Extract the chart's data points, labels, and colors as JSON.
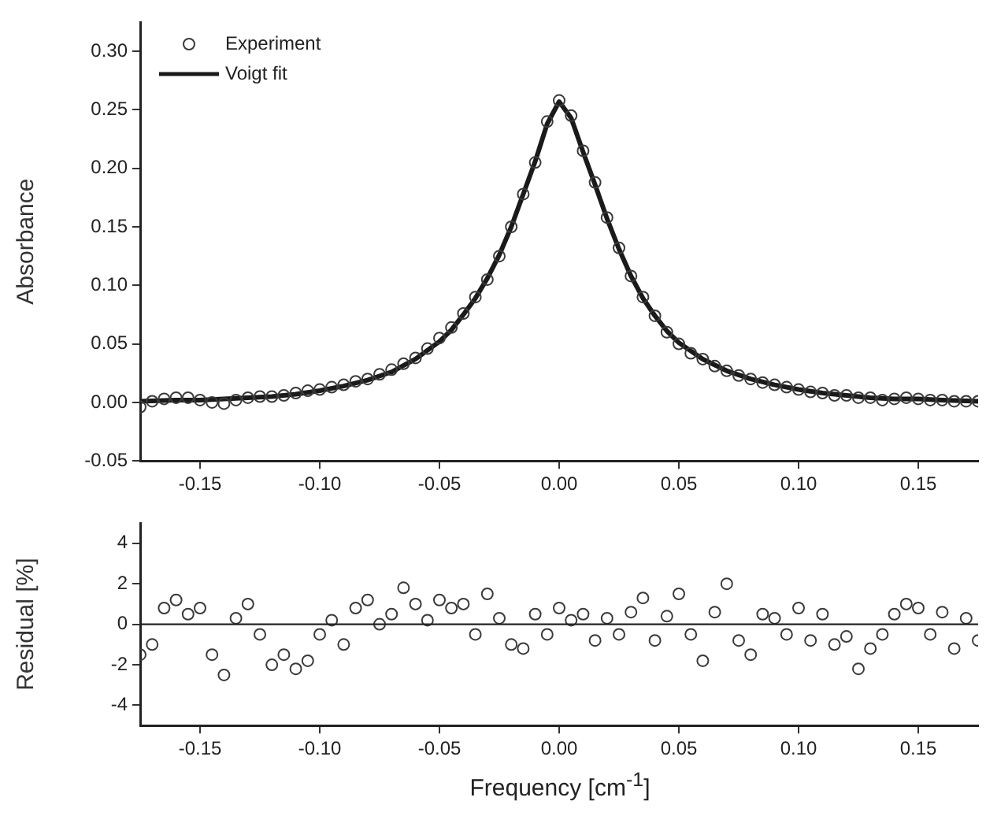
{
  "chart_data": [
    {
      "type": "scatter",
      "ylabel": "Absorbance",
      "xlim": [
        -0.175,
        0.175
      ],
      "ylim": [
        -0.05,
        0.325
      ],
      "xticks": [
        -0.15,
        {
          "value": -0.1,
          "label": "-0.10"
        },
        {
          "value": -0.05,
          "label": "-0.05"
        },
        {
          "value": 0,
          "label": "0.00"
        },
        0.05,
        {
          "value": 0.1,
          "label": "0.10"
        },
        0.15
      ],
      "yticks": [
        {
          "value": -0.05,
          "label": "-0.05"
        },
        {
          "value": 0,
          "label": "0.00"
        },
        0.05,
        {
          "value": 0.1,
          "label": "0.10"
        },
        0.15,
        {
          "value": 0.2,
          "label": "0.20"
        },
        0.25,
        {
          "value": 0.3,
          "label": "0.30"
        }
      ],
      "grid": false,
      "legend": "top left",
      "series": [
        {
          "name": "Experiment",
          "type": "scatter",
          "marker": "circle",
          "color": "#3a3a3a",
          "x": [
            -0.175,
            -0.17,
            -0.165,
            -0.16,
            -0.155,
            -0.15,
            -0.145,
            -0.14,
            -0.135,
            -0.13,
            -0.125,
            -0.12,
            -0.115,
            -0.11,
            -0.105,
            -0.1,
            -0.095,
            -0.09,
            -0.085,
            -0.08,
            -0.075,
            -0.07,
            -0.065,
            -0.06,
            -0.055,
            -0.05,
            -0.045,
            -0.04,
            -0.035,
            -0.03,
            -0.025,
            -0.02,
            -0.015,
            -0.01,
            -0.005,
            0,
            0.005,
            0.01,
            0.015,
            0.02,
            0.025,
            0.03,
            0.035,
            0.04,
            0.045,
            0.05,
            0.055,
            0.06,
            0.065,
            0.07,
            0.075,
            0.08,
            0.085,
            0.09,
            0.095,
            0.1,
            0.105,
            0.11,
            0.115,
            0.12,
            0.125,
            0.13,
            0.135,
            0.14,
            0.145,
            0.15,
            0.155,
            0.16,
            0.165,
            0.17,
            0.175
          ],
          "values": [
            -0.004,
            0.001,
            0.003,
            0.004,
            0.004,
            0.002,
            0.0,
            -0.001,
            0.002,
            0.004,
            0.005,
            0.005,
            0.006,
            0.008,
            0.01,
            0.011,
            0.013,
            0.015,
            0.018,
            0.02,
            0.024,
            0.028,
            0.033,
            0.038,
            0.046,
            0.055,
            0.064,
            0.076,
            0.09,
            0.105,
            0.125,
            0.15,
            0.178,
            0.205,
            0.24,
            0.258,
            0.245,
            0.215,
            0.188,
            0.158,
            0.132,
            0.108,
            0.09,
            0.074,
            0.06,
            0.05,
            0.042,
            0.037,
            0.031,
            0.027,
            0.023,
            0.02,
            0.017,
            0.015,
            0.013,
            0.011,
            0.009,
            0.008,
            0.006,
            0.006,
            0.004,
            0.004,
            0.002,
            0.003,
            0.004,
            0.003,
            0.002,
            0.002,
            0.001,
            0.001,
            0.001
          ]
        },
        {
          "name": "Voigt fit",
          "type": "line",
          "marker": "none",
          "line_style": "solid",
          "color": "#1a1a1a",
          "x": [
            -0.175,
            -0.16,
            -0.15,
            -0.14,
            -0.13,
            -0.12,
            -0.11,
            -0.1,
            -0.09,
            -0.08,
            -0.07,
            -0.06,
            -0.05,
            -0.045,
            -0.04,
            -0.035,
            -0.03,
            -0.025,
            -0.02,
            -0.015,
            -0.01,
            -0.005,
            0,
            0.005,
            0.01,
            0.015,
            0.02,
            0.025,
            0.03,
            0.035,
            0.04,
            0.045,
            0.05,
            0.06,
            0.07,
            0.08,
            0.09,
            0.1,
            0.11,
            0.12,
            0.13,
            0.14,
            0.15,
            0.16,
            0.175
          ],
          "values": [
            0.001,
            0.002,
            0.002,
            0.003,
            0.004,
            0.005,
            0.007,
            0.01,
            0.014,
            0.019,
            0.026,
            0.037,
            0.052,
            0.062,
            0.075,
            0.089,
            0.106,
            0.126,
            0.15,
            0.178,
            0.206,
            0.238,
            0.257,
            0.243,
            0.214,
            0.186,
            0.157,
            0.131,
            0.108,
            0.089,
            0.074,
            0.061,
            0.051,
            0.037,
            0.027,
            0.02,
            0.015,
            0.011,
            0.008,
            0.006,
            0.004,
            0.003,
            0.003,
            0.002,
            0.001
          ]
        }
      ]
    },
    {
      "type": "scatter",
      "xlabel": "Frequency [cm$^{-1}$]",
      "ylabel": "Residual [%]",
      "xlim": [
        -0.175,
        0.175
      ],
      "ylim": [
        -5,
        5
      ],
      "xticks": [
        -0.15,
        {
          "value": -0.1,
          "label": "-0.10"
        },
        {
          "value": -0.05,
          "label": "-0.05"
        },
        {
          "value": 0,
          "label": "0.00"
        },
        0.05,
        {
          "value": 0.1,
          "label": "0.10"
        },
        0.15
      ],
      "yticks": [
        -4,
        -2,
        0,
        2,
        4
      ],
      "grid": false,
      "legend": false,
      "marker": "circle",
      "color": "#3a3a3a",
      "ref_lines": [
        {
          "axis": "y",
          "value": 0
        }
      ],
      "x": [
        -0.175,
        -0.17,
        -0.165,
        -0.16,
        -0.155,
        -0.15,
        -0.145,
        -0.14,
        -0.135,
        -0.13,
        -0.125,
        -0.12,
        -0.115,
        -0.11,
        -0.105,
        -0.1,
        -0.095,
        -0.09,
        -0.085,
        -0.08,
        -0.075,
        -0.07,
        -0.065,
        -0.06,
        -0.055,
        -0.05,
        -0.045,
        -0.04,
        -0.035,
        -0.03,
        -0.025,
        -0.02,
        -0.015,
        -0.01,
        -0.005,
        0,
        0.005,
        0.01,
        0.015,
        0.02,
        0.025,
        0.03,
        0.035,
        0.04,
        0.045,
        0.05,
        0.055,
        0.06,
        0.065,
        0.07,
        0.075,
        0.08,
        0.085,
        0.09,
        0.095,
        0.1,
        0.105,
        0.11,
        0.115,
        0.12,
        0.125,
        0.13,
        0.135,
        0.14,
        0.145,
        0.15,
        0.155,
        0.16,
        0.165,
        0.17,
        0.175
      ],
      "values": [
        -1.5,
        -1.0,
        0.8,
        1.2,
        0.5,
        0.8,
        -1.5,
        -2.5,
        0.3,
        1.0,
        -0.5,
        -2.0,
        -1.5,
        -2.2,
        -1.8,
        -0.5,
        0.2,
        -1.0,
        0.8,
        1.2,
        0.0,
        0.5,
        1.8,
        1.0,
        0.2,
        1.2,
        0.8,
        1.0,
        -0.5,
        1.5,
        0.3,
        -1.0,
        -1.2,
        0.5,
        -0.5,
        0.8,
        0.2,
        0.5,
        -0.8,
        0.3,
        -0.5,
        0.6,
        1.3,
        -0.8,
        0.4,
        1.5,
        -0.5,
        -1.8,
        0.6,
        2.0,
        -0.8,
        -1.5,
        0.5,
        0.3,
        -0.5,
        0.8,
        -0.8,
        0.5,
        -1.0,
        -0.6,
        -2.2,
        -1.2,
        -0.5,
        0.5,
        1.0,
        0.8,
        -0.5,
        0.6,
        -1.2,
        0.3,
        -0.8
      ]
    }
  ]
}
